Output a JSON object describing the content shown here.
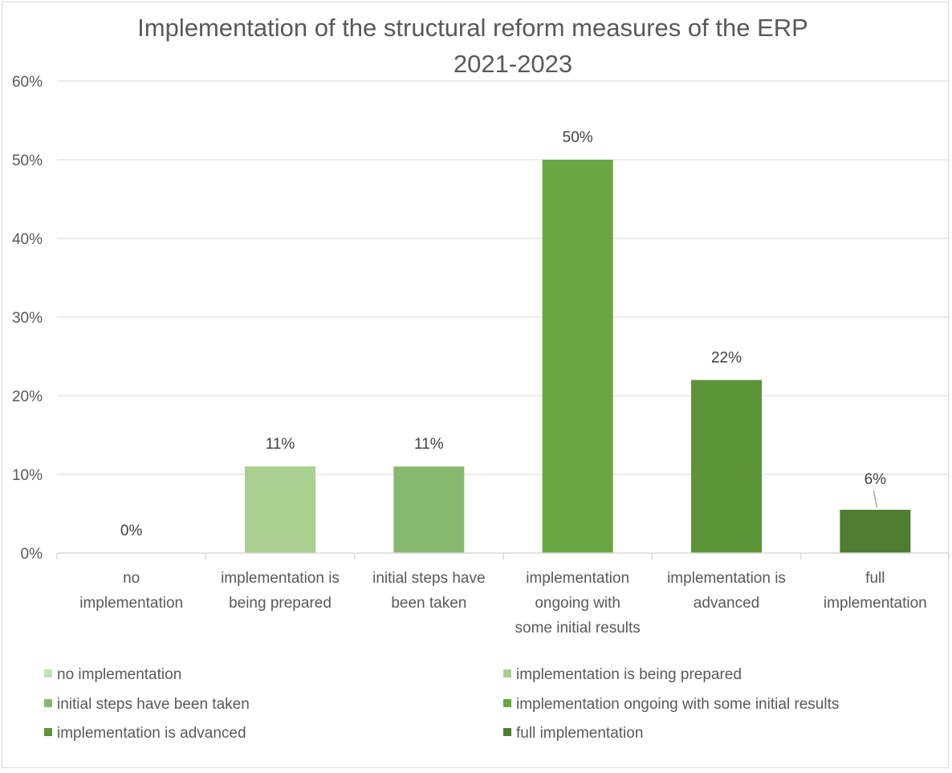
{
  "chart_data": {
    "type": "bar",
    "title_lines": [
      "Implementation of the structural reform measures of the ERP",
      "2021-2023"
    ],
    "categories": [
      "no implementation",
      "implementation is being prepared",
      "initial steps have been taken",
      "implementation ongoing with some initial results",
      "implementation is advanced",
      "full implementation"
    ],
    "category_tick_lines": [
      [
        "no",
        "implementation"
      ],
      [
        "implementation is",
        "being prepared"
      ],
      [
        "initial steps have",
        "been taken"
      ],
      [
        "implementation",
        "ongoing with",
        "some initial results"
      ],
      [
        "implementation is",
        "advanced"
      ],
      [
        "full",
        "implementation"
      ]
    ],
    "values": [
      0,
      11,
      11,
      50,
      22,
      5.5
    ],
    "data_labels": [
      "0%",
      "11%",
      "11%",
      "50%",
      "22%",
      "6%"
    ],
    "colors": [
      "#c5e0b4",
      "#a9d08e",
      "#86b96e",
      "#6aa642",
      "#5c9438",
      "#4e7d31"
    ],
    "y_ticks": [
      "0%",
      "10%",
      "20%",
      "30%",
      "40%",
      "50%",
      "60%"
    ],
    "ylim": [
      0,
      60
    ],
    "xlabel": "",
    "ylabel": "",
    "grid": true,
    "legend_position": "bottom",
    "legend": [
      "no implementation",
      "implementation is being prepared",
      "initial steps have been taken",
      "implementation ongoing with some initial results",
      "implementation is advanced",
      "full implementation"
    ]
  }
}
